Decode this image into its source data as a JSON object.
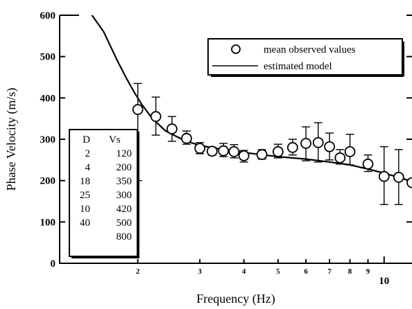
{
  "chart_data": {
    "type": "scatter",
    "xlabel": "Frequency (Hz)",
    "ylabel": "Phase Velocity (m/s)",
    "xscale": "log",
    "xlim": [
      1.2,
      12
    ],
    "ylim": [
      0,
      600
    ],
    "x_ticks": [
      {
        "value": 2,
        "label": "2"
      },
      {
        "value": 3,
        "label": "3"
      },
      {
        "value": 4,
        "label": "4"
      },
      {
        "value": 5,
        "label": "5"
      },
      {
        "value": 6,
        "label": "6"
      },
      {
        "value": 7,
        "label": "7"
      },
      {
        "value": 8,
        "label": "8"
      },
      {
        "value": 9,
        "label": "9"
      },
      {
        "value": 10,
        "label": "10"
      }
    ],
    "y_ticks": [
      0,
      100,
      200,
      300,
      400,
      500,
      600
    ],
    "legend_position": "top-right",
    "series": [
      {
        "name": "mean observed values",
        "marker": "open-circle",
        "x": [
          2.0,
          2.25,
          2.5,
          2.75,
          3.0,
          3.25,
          3.5,
          3.75,
          4.0,
          4.5,
          5.0,
          5.5,
          6.0,
          6.5,
          7.0,
          7.5,
          8.0,
          9.0,
          10.0,
          11.0,
          12.0
        ],
        "y": [
          372,
          355,
          325,
          302,
          278,
          271,
          272,
          270,
          260,
          263,
          270,
          280,
          290,
          292,
          282,
          255,
          270,
          240,
          210,
          208,
          195
        ],
        "error_low": [
          200,
          310,
          295,
          288,
          265,
          262,
          258,
          255,
          245,
          252,
          255,
          262,
          248,
          245,
          250,
          240,
          238,
          222,
          142,
          142,
          0
        ],
        "error_high": [
          435,
          402,
          355,
          320,
          292,
          280,
          290,
          287,
          273,
          275,
          288,
          300,
          330,
          340,
          315,
          275,
          312,
          262,
          282,
          275,
          0
        ]
      },
      {
        "name": "estimated model",
        "line": true,
        "x": [
          1.2,
          1.4,
          1.6,
          1.75,
          1.85,
          1.95,
          2.05,
          2.2,
          2.4,
          2.7,
          3.0,
          3.5,
          4.0,
          5.0,
          6.0,
          7.0,
          8.0,
          9.0,
          10.0,
          11.0,
          12.0
        ],
        "y": [
          650,
          630,
          560,
          490,
          450,
          415,
          385,
          350,
          320,
          298,
          285,
          275,
          268,
          258,
          252,
          245,
          238,
          228,
          218,
          208,
          198
        ]
      }
    ],
    "inset_table": {
      "headers": [
        "D",
        "Vs"
      ],
      "rows": [
        [
          "2",
          "120"
        ],
        [
          "4",
          "200"
        ],
        [
          "18",
          "350"
        ],
        [
          "25",
          "300"
        ],
        [
          "10",
          "420"
        ],
        [
          "40",
          "500"
        ],
        [
          "",
          "800"
        ]
      ]
    }
  }
}
